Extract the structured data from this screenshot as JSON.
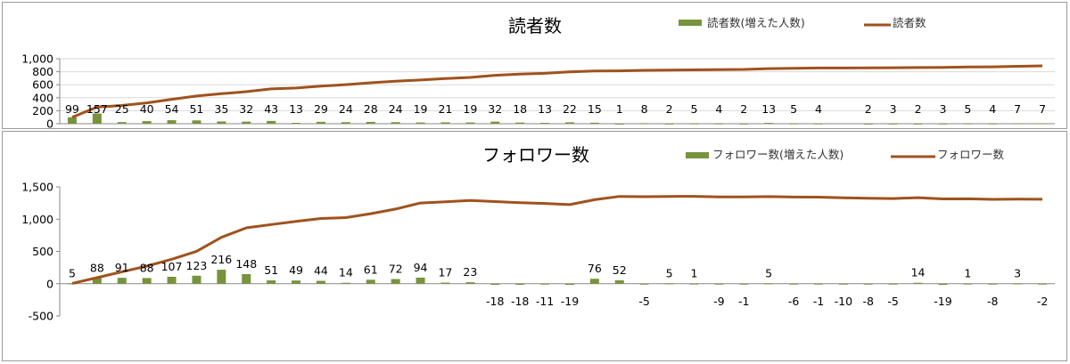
{
  "chart_data": [
    {
      "type": "bar+line",
      "title": "読者数",
      "legend": [
        "読者数(増えた人数)",
        "読者数"
      ],
      "legend_position": "top-right",
      "colors": {
        "bar": "#77933c",
        "line": "#a0521c"
      },
      "y_ticks": [
        "1,000",
        "800",
        "600",
        "400",
        "200",
        "0"
      ],
      "ylim": [
        0,
        1000
      ],
      "grid": true,
      "bar_values": [
        99,
        157,
        25,
        40,
        54,
        51,
        35,
        32,
        43,
        13,
        29,
        24,
        28,
        24,
        19,
        21,
        19,
        32,
        18,
        13,
        22,
        15,
        1,
        8,
        2,
        5,
        4,
        2,
        13,
        5,
        4,
        null,
        2,
        3,
        2,
        3,
        5,
        4,
        7,
        7
      ],
      "bar_labels": [
        "99",
        "157",
        "25",
        "40",
        "54",
        "51",
        "35",
        "32",
        "43",
        "13",
        "29",
        "24",
        "28",
        "24",
        "19",
        "21",
        "19",
        "32",
        "18",
        "13",
        "22",
        "15",
        "1",
        "8",
        "2",
        "5",
        "4",
        "2",
        "13",
        "5",
        "4",
        "",
        "2",
        "3",
        "2",
        "3",
        "5",
        "4",
        "7",
        "7"
      ],
      "line_values": [
        99,
        256,
        281,
        321,
        375,
        426,
        461,
        493,
        536,
        549,
        578,
        602,
        630,
        654,
        673,
        694,
        713,
        745,
        763,
        776,
        798,
        813,
        814,
        822,
        824,
        829,
        833,
        835,
        848,
        853,
        857,
        857,
        859,
        862,
        864,
        867,
        872,
        876,
        883,
        890
      ]
    },
    {
      "type": "bar+line",
      "title": "フォロワー数",
      "legend": [
        "フォロワー数(増えた人数)",
        "フォロワー数"
      ],
      "legend_position": "top-right",
      "colors": {
        "bar": "#77933c",
        "line": "#a0521c"
      },
      "y_ticks": [
        "1,500",
        "1,000",
        "500",
        "0",
        "-500"
      ],
      "ylim": [
        -500,
        1500
      ],
      "grid": false,
      "bar_values": [
        5,
        88,
        91,
        88,
        107,
        123,
        216,
        148,
        51,
        49,
        44,
        14,
        61,
        72,
        94,
        17,
        23,
        -18,
        -18,
        -11,
        -19,
        76,
        52,
        -5,
        5,
        1,
        -9,
        -1,
        5,
        -6,
        -1,
        -10,
        -8,
        -5,
        14,
        -19,
        1,
        -8,
        3,
        -2
      ],
      "bar_labels": [
        "5",
        "88",
        "91",
        "88",
        "107",
        "123",
        "216",
        "148",
        "51",
        "49",
        "44",
        "14",
        "61",
        "72",
        "94",
        "17",
        "23",
        "-18",
        "-18",
        "-11",
        "-19",
        "76",
        "52",
        "-5",
        "5",
        "1",
        "-9",
        "-1",
        "5",
        "-6",
        "-1",
        "-10",
        "-8",
        "-5",
        "14",
        "-19",
        "1",
        "-8",
        "3",
        "-2"
      ],
      "line_values": [
        5,
        93,
        184,
        272,
        379,
        502,
        718,
        866,
        917,
        966,
        1010,
        1024,
        1085,
        1157,
        1251,
        1268,
        1291,
        1273,
        1255,
        1244,
        1225,
        1301,
        1353,
        1348,
        1353,
        1354,
        1345,
        1344,
        1349,
        1343,
        1342,
        1332,
        1324,
        1319,
        1333,
        1314,
        1315,
        1307,
        1310,
        1308
      ]
    }
  ]
}
